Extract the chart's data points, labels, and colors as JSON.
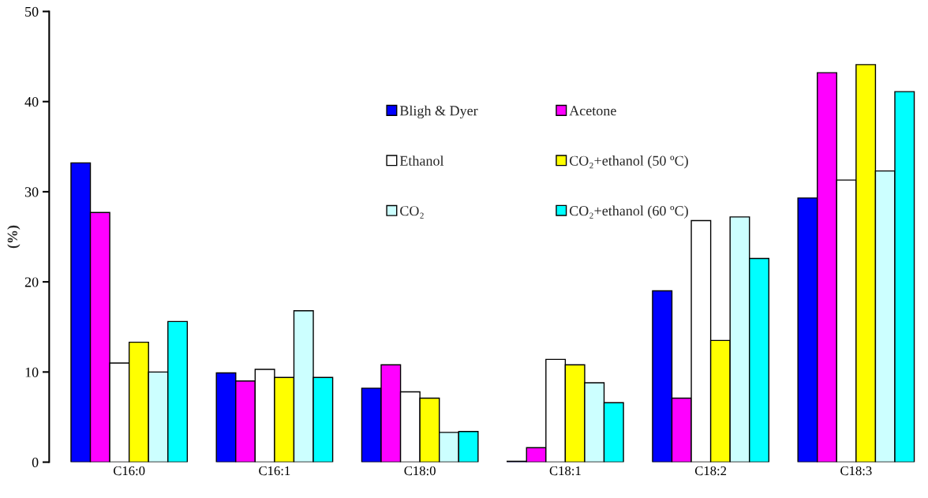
{
  "chart_data": {
    "type": "bar",
    "ylabel": "(%)",
    "categories": [
      "C16:0",
      "C16:1",
      "C18:0",
      "C18:1",
      "C18:2",
      "C18:3"
    ],
    "series": [
      {
        "name": "Bligh & Dyer",
        "color": "#0000ff",
        "values": [
          33.2,
          9.9,
          8.2,
          0.1,
          19.0,
          29.3
        ]
      },
      {
        "name": "Acetone",
        "color": "#ff00ff",
        "values": [
          27.7,
          9.0,
          10.8,
          1.6,
          7.1,
          43.2
        ]
      },
      {
        "name": "Ethanol",
        "color": "#ffffff",
        "values": [
          11.0,
          10.3,
          7.8,
          11.4,
          26.8,
          31.3
        ]
      },
      {
        "name": "CO₂+ethanol (50 ºC)",
        "color": "#ffff00",
        "values": [
          13.3,
          9.4,
          7.1,
          10.8,
          13.5,
          44.1
        ]
      },
      {
        "name": "CO₂",
        "color": "#ccffff",
        "values": [
          10.0,
          16.8,
          3.3,
          8.8,
          27.2,
          32.3
        ]
      },
      {
        "name": "CO₂+ethanol (60 ºC)",
        "color": "#00ffff",
        "values": [
          15.6,
          9.4,
          3.4,
          6.6,
          22.6,
          41.1
        ]
      }
    ],
    "ylim": [
      0,
      50
    ],
    "yticks": [
      0,
      10,
      20,
      30,
      40,
      50
    ],
    "grid": false,
    "legend": "top"
  }
}
